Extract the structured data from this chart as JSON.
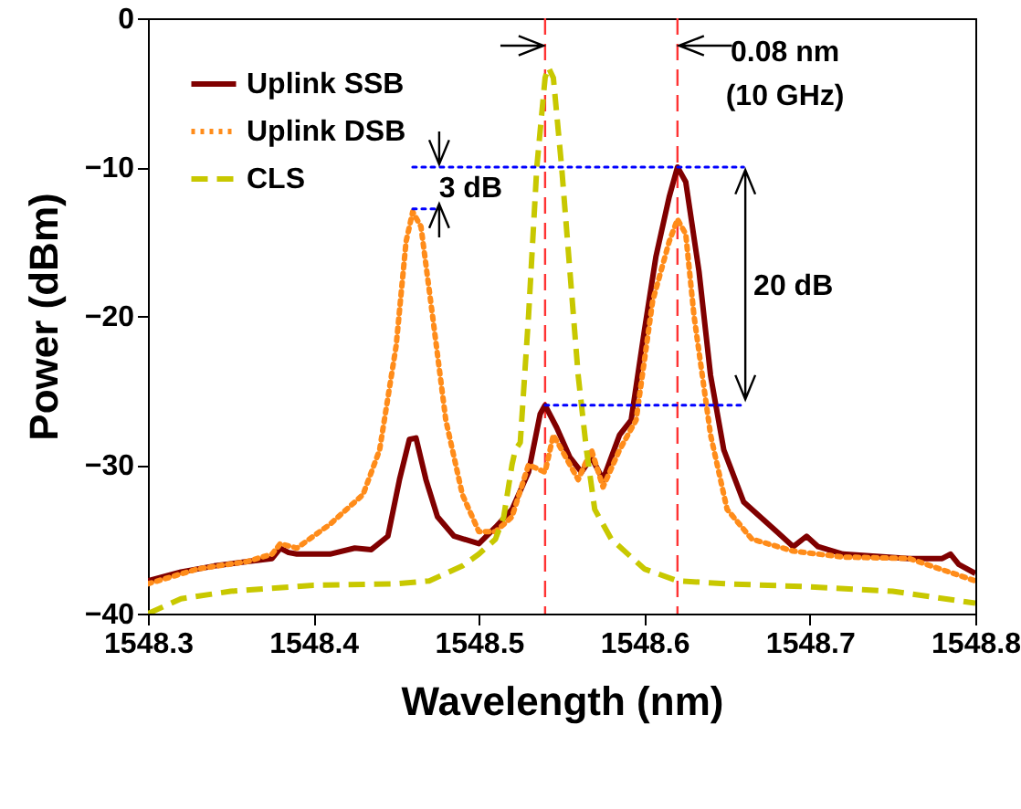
{
  "chart_data": {
    "type": "line",
    "xlabel": "Wavelength (nm)",
    "ylabel": "Power (dBm)",
    "xlim": [
      1548.3,
      1548.8
    ],
    "xticks": [
      1548.3,
      1548.4,
      1548.5,
      1548.6,
      1548.7,
      1548.8
    ],
    "ylim": [
      -40,
      0
    ],
    "yticks": [
      -40,
      -30,
      -20,
      -10,
      0
    ],
    "grid": false,
    "legend": "top left",
    "series": [
      {
        "name": "Uplink SSB",
        "color": "#800000",
        "line_style": "solid",
        "x": [
          1548.3,
          1548.32,
          1548.34,
          1548.36,
          1548.375,
          1548.38,
          1548.385,
          1548.39,
          1548.41,
          1548.425,
          1548.435,
          1548.445,
          1548.452,
          1548.458,
          1548.462,
          1548.468,
          1548.475,
          1548.485,
          1548.5,
          1548.51,
          1548.52,
          1548.53,
          1548.537,
          1548.54,
          1548.547,
          1548.555,
          1548.562,
          1548.568,
          1548.575,
          1548.585,
          1548.592,
          1548.6,
          1548.607,
          1548.615,
          1548.62,
          1548.625,
          1548.633,
          1548.64,
          1548.648,
          1548.66,
          1548.68,
          1548.69,
          1548.698,
          1548.705,
          1548.72,
          1548.76,
          1548.78,
          1548.785,
          1548.79,
          1548.8
        ],
        "values": [
          -37.8,
          -37.2,
          -36.8,
          -36.5,
          -36.3,
          -35.6,
          -35.9,
          -36,
          -36,
          -35.6,
          -35.7,
          -34.8,
          -31,
          -28.3,
          -28.2,
          -31,
          -33.5,
          -34.8,
          -35.3,
          -34.2,
          -33,
          -30.5,
          -26.6,
          -26,
          -27.5,
          -29.5,
          -30.5,
          -29.5,
          -31,
          -28,
          -27,
          -21,
          -16,
          -12,
          -10,
          -11,
          -17,
          -24,
          -29,
          -32.5,
          -34.5,
          -35.5,
          -34.8,
          -35.5,
          -36,
          -36.3,
          -36.3,
          -36,
          -36.7,
          -37.3
        ]
      },
      {
        "name": "Uplink DSB",
        "color": "#ff8c1a",
        "line_style": "dotted",
        "x": [
          1548.3,
          1548.33,
          1548.36,
          1548.375,
          1548.38,
          1548.39,
          1548.41,
          1548.43,
          1548.44,
          1548.45,
          1548.456,
          1548.46,
          1548.465,
          1548.472,
          1548.48,
          1548.49,
          1548.5,
          1548.51,
          1548.52,
          1548.53,
          1548.54,
          1548.545,
          1548.55,
          1548.56,
          1548.568,
          1548.575,
          1548.585,
          1548.595,
          1548.605,
          1548.615,
          1548.62,
          1548.625,
          1548.63,
          1548.64,
          1548.65,
          1548.665,
          1548.69,
          1548.72,
          1548.76,
          1548.8
        ],
        "values": [
          -38,
          -37,
          -36.5,
          -36,
          -35.3,
          -35.6,
          -34,
          -32,
          -29,
          -22,
          -15,
          -13,
          -14,
          -20,
          -27,
          -32,
          -34.5,
          -34.5,
          -33.5,
          -30,
          -30.5,
          -28,
          -29,
          -31,
          -29,
          -31.5,
          -29,
          -27,
          -19,
          -15,
          -13.5,
          -14.5,
          -20,
          -28,
          -33,
          -35,
          -35.8,
          -36.2,
          -36.3,
          -37.8
        ]
      },
      {
        "name": "CLS",
        "color": "#c8c800",
        "line_style": "dashed",
        "x": [
          1548.3,
          1548.32,
          1548.35,
          1548.4,
          1548.45,
          1548.47,
          1548.49,
          1548.5,
          1548.51,
          1548.515,
          1548.52,
          1548.522,
          1548.525,
          1548.53,
          1548.535,
          1548.54,
          1548.542,
          1548.545,
          1548.55,
          1548.555,
          1548.56,
          1548.565,
          1548.57,
          1548.58,
          1548.6,
          1548.62,
          1548.65,
          1548.7,
          1548.75,
          1548.8
        ],
        "values": [
          -40,
          -39,
          -38.5,
          -38.1,
          -38,
          -37.8,
          -36.8,
          -36,
          -35,
          -33.5,
          -30,
          -29,
          -28.5,
          -20,
          -10,
          -4,
          -3.3,
          -4,
          -10,
          -17,
          -24,
          -29,
          -33,
          -35,
          -37,
          -37.8,
          -38,
          -38.2,
          -38.5,
          -39.3
        ]
      },
      {
        "color": "#0000ff",
        "line_style": "dotted",
        "x": [
          1548.46,
          1548.66
        ],
        "values": [
          -10,
          -10
        ]
      },
      {
        "color": "#0000ff",
        "line_style": "dotted",
        "x": [
          1548.46,
          1548.475
        ],
        "values": [
          -12.8,
          -12.8
        ]
      },
      {
        "color": "#0000ff",
        "line_style": "dotted",
        "x": [
          1548.54,
          1548.66
        ],
        "values": [
          -26,
          -26
        ]
      }
    ],
    "ref_lines": [
      {
        "axis": "x",
        "value": 1548.54,
        "color": "#ff3333",
        "line_style": "dashed"
      },
      {
        "axis": "x",
        "value": 1548.62,
        "color": "#ff3333",
        "line_style": "dashed"
      }
    ],
    "annotations": [
      "0.08 nm",
      "(10 GHz)",
      "3 dB",
      "20 dB"
    ]
  }
}
